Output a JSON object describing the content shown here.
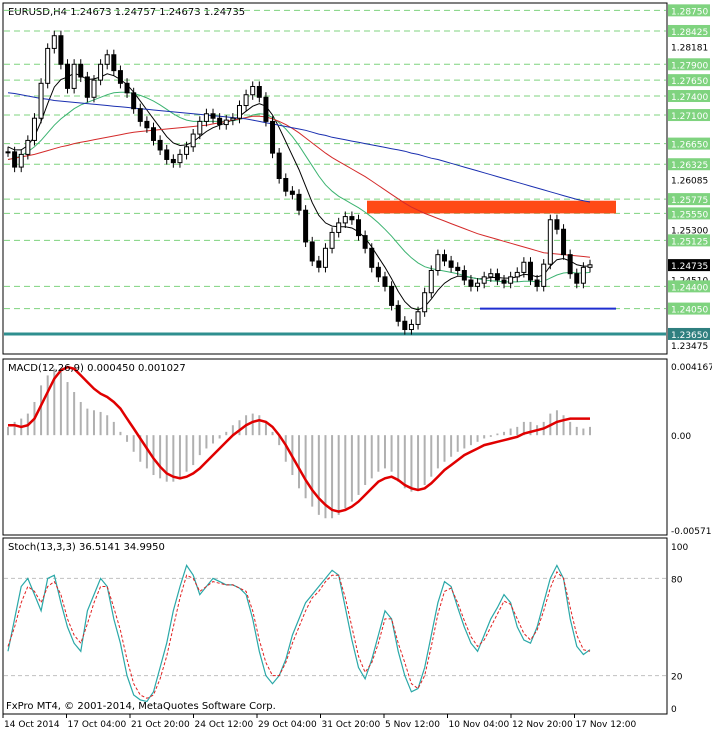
{
  "header": {
    "symbol_line": "EURUSD,H4  1.24673 1.24757 1.24673 1.24735"
  },
  "watermark": "FxPro MT4, © 2001-2014, MetaQuotes Software Corp.",
  "colors": {
    "background": "#ffffff",
    "candle": "#000000",
    "grid": "#c8c8c8",
    "level_line": "#7fd37f",
    "level_label_bg": "#7fd37f",
    "price_tag_bg": "#000000",
    "support_line": "#2f8f8f",
    "support_label_bg": "#2f7f7f",
    "resistance_zone": "#ff4a16",
    "blue_line": "#1f2fd0",
    "ma_fast": "#000000",
    "ma_mid": "#3cb371",
    "ma_red": "#d42a2a",
    "ma_blue": "#1a2fb0",
    "macd_signal": "#e00000",
    "macd_hist": "#b0b0b0",
    "stoch_main": "#2aa8a8",
    "stoch_signal": "#e02020"
  },
  "chart_data": [
    {
      "type": "line",
      "title": "EURUSD,H4",
      "subtitle": "1.24673 1.24757 1.24673 1.24735",
      "ylim": [
        1.2335,
        1.2885
      ],
      "y_ticks": [
        "1.28750",
        "1.28425",
        "1.28181",
        "1.27900",
        "1.27650",
        "1.27400",
        "1.27100",
        "1.26650",
        "1.26325",
        "1.26085",
        "1.25775",
        "1.25550",
        "1.25300",
        "1.25125",
        "1.24735",
        "1.24510",
        "1.24400",
        "1.24050",
        "1.23650",
        "1.23475"
      ],
      "highlighted_levels": [
        1.2875,
        1.28425,
        1.279,
        1.2765,
        1.274,
        1.271,
        1.2665,
        1.26325,
        1.25775,
        1.2555,
        1.25125,
        1.244,
        1.2405
      ],
      "plain_labels": [
        1.28181,
        1.26085,
        1.253,
        1.2451,
        1.23475
      ],
      "current_price": 1.24735,
      "support_level": 1.2365,
      "resistance_zone": [
        1.2555,
        1.2575
      ],
      "blue_level": 1.2405,
      "x_tick_labels": [
        "14 Oct 2014",
        "17 Oct 04:00",
        "21 Oct 20:00",
        "24 Oct 12:00",
        "29 Oct 04:00",
        "31 Oct 20:00",
        "5 Nov 12:00",
        "10 Nov 04:00",
        "12 Nov 20:00",
        "17 Nov 12:00"
      ],
      "close": [
        1.2652,
        1.2628,
        1.2648,
        1.267,
        1.2705,
        1.276,
        1.2815,
        1.2835,
        1.279,
        1.2752,
        1.279,
        1.277,
        1.2738,
        1.2765,
        1.279,
        1.2805,
        1.278,
        1.276,
        1.2745,
        1.272,
        1.27,
        1.269,
        1.267,
        1.2655,
        1.264,
        1.2635,
        1.2648,
        1.266,
        1.268,
        1.27,
        1.2712,
        1.2705,
        1.2695,
        1.2702,
        1.2705,
        1.2725,
        1.2742,
        1.2755,
        1.2738,
        1.27,
        1.265,
        1.261,
        1.259,
        1.2585,
        1.256,
        1.251,
        1.248,
        1.247,
        1.25,
        1.2525,
        1.254,
        1.255,
        1.2545,
        1.252,
        1.25,
        1.247,
        1.2455,
        1.244,
        1.241,
        1.2385,
        1.2372,
        1.238,
        1.24,
        1.243,
        1.2465,
        1.249,
        1.248,
        1.247,
        1.2465,
        1.245,
        1.244,
        1.2445,
        1.2455,
        1.246,
        1.245,
        1.2445,
        1.2455,
        1.2462,
        1.2478,
        1.245,
        1.244,
        1.2475,
        1.2545,
        1.253,
        1.249,
        1.246,
        1.2445,
        1.247,
        1.2474
      ],
      "series": [
        {
          "name": "MA fast",
          "values": [
            1.266,
            1.2655,
            1.2655,
            1.2662,
            1.2676,
            1.27,
            1.2728,
            1.2754,
            1.2766,
            1.277,
            1.2776,
            1.2772,
            1.2766,
            1.2767,
            1.277,
            1.2775,
            1.2772,
            1.2766,
            1.2758,
            1.2746,
            1.2732,
            1.2718,
            1.2704,
            1.269,
            1.2676,
            1.2666,
            1.2662,
            1.2663,
            1.2668,
            1.2676,
            1.2684,
            1.269,
            1.2694,
            1.2698,
            1.2702,
            1.2708,
            1.2716,
            1.2724,
            1.2728,
            1.2724,
            1.271,
            1.269,
            1.2668,
            1.2646,
            1.2624,
            1.2598,
            1.2572,
            1.2552,
            1.254,
            1.2535,
            1.2534,
            1.2534,
            1.2532,
            1.2526,
            1.2516,
            1.2502,
            1.2486,
            1.247,
            1.2452,
            1.2432,
            1.2416,
            1.2406,
            1.2403,
            1.2408,
            1.242,
            1.2434,
            1.2445,
            1.2452,
            1.2456,
            1.2456,
            1.2454,
            1.2452,
            1.2452,
            1.2454,
            1.2454,
            1.2453,
            1.2453,
            1.2455,
            1.2459,
            1.2458,
            1.2455,
            1.2458,
            1.2472,
            1.2482,
            1.2484,
            1.248,
            1.2474,
            1.2472,
            1.2472
          ]
        },
        {
          "name": "MA mid",
          "values": [
            1.264,
            1.2642,
            1.2646,
            1.2652,
            1.266,
            1.267,
            1.2682,
            1.2694,
            1.2704,
            1.2712,
            1.272,
            1.2726,
            1.273,
            1.2734,
            1.2738,
            1.2742,
            1.2745,
            1.2746,
            1.2746,
            1.2744,
            1.2741,
            1.2737,
            1.2732,
            1.2726,
            1.2719,
            1.2712,
            1.2706,
            1.2702,
            1.27,
            1.27,
            1.27,
            1.27,
            1.27,
            1.27,
            1.2701,
            1.2703,
            1.2706,
            1.271,
            1.2712,
            1.2711,
            1.2706,
            1.2698,
            1.2688,
            1.2676,
            1.2662,
            1.2646,
            1.263,
            1.2614,
            1.26,
            1.259,
            1.2582,
            1.2576,
            1.257,
            1.2564,
            1.2557,
            1.2549,
            1.254,
            1.253,
            1.2519,
            1.2507,
            1.2495,
            1.2485,
            1.2477,
            1.2471,
            1.2468,
            1.2466,
            1.2464,
            1.2462,
            1.246,
            1.2457,
            1.2454,
            1.2452,
            1.245,
            1.2449,
            1.2448,
            1.2447,
            1.2447,
            1.2447,
            1.2448,
            1.2448,
            1.2447,
            1.2448,
            1.2453,
            1.2458,
            1.2461,
            1.2462,
            1.2461,
            1.2461,
            1.2462
          ]
        },
        {
          "name": "MA red",
          "values": [
            1.264,
            1.2642,
            1.2644,
            1.2646,
            1.2648,
            1.2651,
            1.2654,
            1.2657,
            1.266,
            1.2662,
            1.2665,
            1.2667,
            1.2669,
            1.2671,
            1.2673,
            1.2675,
            1.2677,
            1.2679,
            1.2681,
            1.2683,
            1.2684,
            1.2685,
            1.2686,
            1.2687,
            1.2688,
            1.2689,
            1.269,
            1.2691,
            1.2692,
            1.2693,
            1.2694,
            1.2696,
            1.2698,
            1.27,
            1.2702,
            1.2704,
            1.2706,
            1.2708,
            1.2708,
            1.2707,
            1.2704,
            1.27,
            1.2695,
            1.2689,
            1.2682,
            1.2674,
            1.2666,
            1.2658,
            1.265,
            1.2643,
            1.2637,
            1.2631,
            1.2625,
            1.2619,
            1.2613,
            1.2606,
            1.2599,
            1.2592,
            1.2585,
            1.2578,
            1.2571,
            1.2565,
            1.256,
            1.2555,
            1.2551,
            1.2547,
            1.2543,
            1.2539,
            1.2535,
            1.2531,
            1.2527,
            1.2523,
            1.252,
            1.2517,
            1.2514,
            1.2511,
            1.2508,
            1.2505,
            1.2502,
            1.2499,
            1.2496,
            1.2493,
            1.2492,
            1.2491,
            1.249,
            1.2489,
            1.2488,
            1.2487,
            1.2486
          ]
        },
        {
          "name": "MA blue",
          "values": [
            1.2745,
            1.2744,
            1.2742,
            1.274,
            1.2738,
            1.2736,
            1.2735,
            1.2733,
            1.2732,
            1.2731,
            1.273,
            1.2729,
            1.2728,
            1.2727,
            1.2726,
            1.2725,
            1.2724,
            1.2723,
            1.2722,
            1.2721,
            1.272,
            1.2719,
            1.2718,
            1.2717,
            1.2716,
            1.2715,
            1.2714,
            1.2713,
            1.2712,
            1.2711,
            1.271,
            1.2709,
            1.2708,
            1.2707,
            1.2706,
            1.2705,
            1.2704,
            1.2702,
            1.27,
            1.2698,
            1.2696,
            1.2694,
            1.2692,
            1.269,
            1.2688,
            1.2686,
            1.2683,
            1.268,
            1.2678,
            1.2675,
            1.2673,
            1.2671,
            1.2669,
            1.2667,
            1.2665,
            1.2663,
            1.2661,
            1.2659,
            1.2657,
            1.2655,
            1.2653,
            1.265,
            1.2648,
            1.2645,
            1.2642,
            1.264,
            1.2637,
            1.2634,
            1.2631,
            1.2628,
            1.2625,
            1.2622,
            1.2619,
            1.2616,
            1.2613,
            1.261,
            1.2607,
            1.2604,
            1.2601,
            1.2598,
            1.2595,
            1.2592,
            1.2589,
            1.2586,
            1.2583,
            1.258,
            1.2577,
            1.2575,
            1.2573
          ]
        }
      ]
    },
    {
      "type": "bar",
      "title": "MACD(12,26,9) 0.000450 0.001027",
      "ylim": [
        -0.005711,
        0.004167
      ],
      "y_ticks": [
        "0.004167",
        "0.00",
        "-0.005711"
      ],
      "series": [
        {
          "name": "MACD",
          "values": [
            0.0005,
            0.0008,
            0.001,
            0.0013,
            0.002,
            0.003,
            0.0036,
            0.004,
            0.0038,
            0.0032,
            0.0026,
            0.002,
            0.0016,
            0.0015,
            0.0014,
            0.0012,
            0.0008,
            0.0002,
            -0.0004,
            -0.001,
            -0.0016,
            -0.002,
            -0.0024,
            -0.0026,
            -0.0028,
            -0.0028,
            -0.0026,
            -0.0022,
            -0.0018,
            -0.0012,
            -0.0008,
            -0.0005,
            -0.0002,
            0.0002,
            0.0006,
            0.0009,
            0.0012,
            0.0013,
            0.0012,
            0.0008,
            0.0002,
            -0.0006,
            -0.0016,
            -0.0024,
            -0.0032,
            -0.0038,
            -0.0043,
            -0.0048,
            -0.005,
            -0.005,
            -0.0048,
            -0.0044,
            -0.004,
            -0.0036,
            -0.003,
            -0.0026,
            -0.0022,
            -0.002,
            -0.0022,
            -0.0028,
            -0.0032,
            -0.0034,
            -0.0033,
            -0.003,
            -0.0025,
            -0.002,
            -0.0016,
            -0.0013,
            -0.001,
            -0.0008,
            -0.0006,
            -0.0004,
            -0.0002,
            -0.0001,
            0.0001,
            0.0002,
            0.0004,
            0.0005,
            0.0008,
            0.0008,
            0.0006,
            0.0008,
            0.0013,
            0.0015,
            0.0012,
            0.0008,
            0.0005,
            0.0004,
            0.0005
          ]
        },
        {
          "name": "Signal",
          "values": [
            0.0006,
            0.0006,
            0.0005,
            0.0006,
            0.001,
            0.0018,
            0.0026,
            0.0034,
            0.0039,
            0.0041,
            0.004,
            0.0036,
            0.0032,
            0.0028,
            0.0025,
            0.0023,
            0.002,
            0.0016,
            0.001,
            0.0004,
            -0.0002,
            -0.0008,
            -0.0014,
            -0.0019,
            -0.0023,
            -0.0025,
            -0.0026,
            -0.0025,
            -0.0023,
            -0.002,
            -0.0016,
            -0.0012,
            -0.0008,
            -0.0004,
            0.0,
            0.0003,
            0.0006,
            0.0008,
            0.0009,
            0.0008,
            0.0005,
            0.0,
            -0.0006,
            -0.0013,
            -0.002,
            -0.0027,
            -0.0033,
            -0.0038,
            -0.0042,
            -0.0045,
            -0.0046,
            -0.0045,
            -0.0043,
            -0.004,
            -0.0036,
            -0.0032,
            -0.0028,
            -0.0026,
            -0.0025,
            -0.0027,
            -0.003,
            -0.0032,
            -0.0033,
            -0.0032,
            -0.0029,
            -0.0025,
            -0.0021,
            -0.0018,
            -0.0015,
            -0.0012,
            -0.001,
            -0.0008,
            -0.0006,
            -0.0005,
            -0.0004,
            -0.0003,
            -0.0002,
            -0.0001,
            0.0001,
            0.0002,
            0.0003,
            0.0004,
            0.0006,
            0.0008,
            0.0009,
            0.001,
            0.001,
            0.001,
            0.001
          ]
        }
      ]
    },
    {
      "type": "line",
      "title": "Stoch(13,3,3) 36.5141 34.9950",
      "ylim": [
        0,
        100
      ],
      "y_ticks": [
        "100",
        "80",
        "20",
        "0"
      ],
      "series": [
        {
          "name": "Stoch main",
          "values": [
            35,
            55,
            75,
            80,
            70,
            60,
            80,
            82,
            65,
            50,
            40,
            35,
            60,
            70,
            80,
            75,
            55,
            40,
            20,
            8,
            5,
            4,
            10,
            25,
            40,
            60,
            75,
            88,
            82,
            70,
            75,
            80,
            78,
            76,
            76,
            74,
            70,
            55,
            35,
            20,
            15,
            20,
            30,
            45,
            55,
            65,
            70,
            75,
            80,
            85,
            82,
            62,
            42,
            25,
            18,
            30,
            45,
            60,
            55,
            35,
            20,
            10,
            12,
            25,
            45,
            65,
            78,
            75,
            62,
            50,
            40,
            35,
            45,
            55,
            62,
            70,
            65,
            50,
            42,
            40,
            50,
            65,
            80,
            88,
            80,
            55,
            38,
            33,
            36
          ]
        },
        {
          "name": "Stoch signal",
          "values": [
            38,
            50,
            65,
            75,
            72,
            65,
            75,
            78,
            70,
            55,
            45,
            40,
            52,
            65,
            75,
            75,
            62,
            48,
            30,
            15,
            8,
            6,
            8,
            18,
            32,
            50,
            68,
            82,
            80,
            72,
            75,
            78,
            77,
            76,
            76,
            74,
            72,
            60,
            42,
            28,
            20,
            20,
            28,
            40,
            50,
            60,
            68,
            72,
            78,
            82,
            82,
            68,
            50,
            32,
            22,
            28,
            40,
            55,
            55,
            40,
            28,
            15,
            12,
            20,
            38,
            58,
            72,
            74,
            65,
            54,
            44,
            38,
            42,
            50,
            58,
            66,
            64,
            55,
            46,
            42,
            48,
            60,
            74,
            84,
            80,
            62,
            45,
            36,
            35
          ]
        }
      ]
    }
  ]
}
